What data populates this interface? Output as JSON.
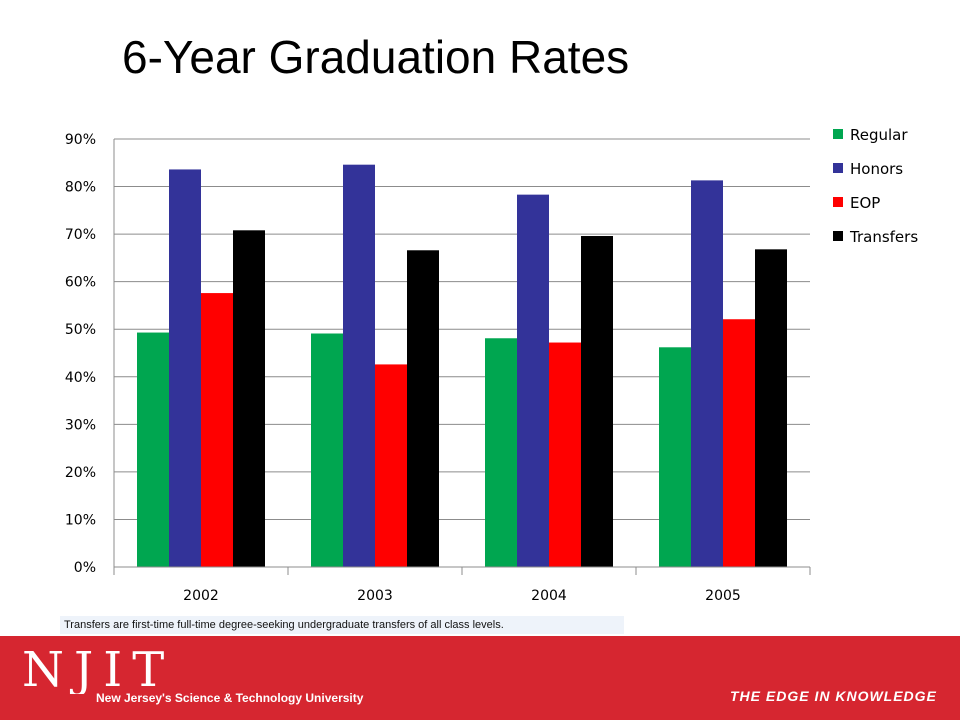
{
  "slide": {
    "title": "6-Year Graduation Rates",
    "footnote": "Transfers are first-time full-time degree-seeking undergraduate transfers of all class levels.",
    "logo_text": "NJIT",
    "logo_subtitle": "New Jersey's Science & Technology University",
    "tagline": "THE EDGE IN KNOWLEDGE"
  },
  "colors": {
    "footer_band": "#d62630"
  },
  "chart_data": {
    "type": "bar",
    "title": "",
    "xlabel": "",
    "ylabel": "",
    "categories": [
      "2002",
      "2003",
      "2004",
      "2005"
    ],
    "series": [
      {
        "name": "Regular",
        "color": "#00a650",
        "values": [
          49.3,
          49.1,
          48.1,
          46.2
        ]
      },
      {
        "name": "Honors",
        "color": "#333399",
        "values": [
          83.6,
          84.6,
          78.3,
          81.3
        ]
      },
      {
        "name": "EOP",
        "color": "#ff0000",
        "values": [
          57.6,
          42.6,
          47.2,
          52.1
        ]
      },
      {
        "name": "Transfers",
        "color": "#000000",
        "values": [
          70.8,
          66.6,
          69.6,
          66.8
        ]
      }
    ],
    "ylim": [
      0,
      90
    ],
    "yticks": [
      "0%",
      "10%",
      "20%",
      "30%",
      "40%",
      "50%",
      "60%",
      "70%",
      "80%",
      "90%"
    ],
    "grid": true,
    "legend": "right"
  }
}
